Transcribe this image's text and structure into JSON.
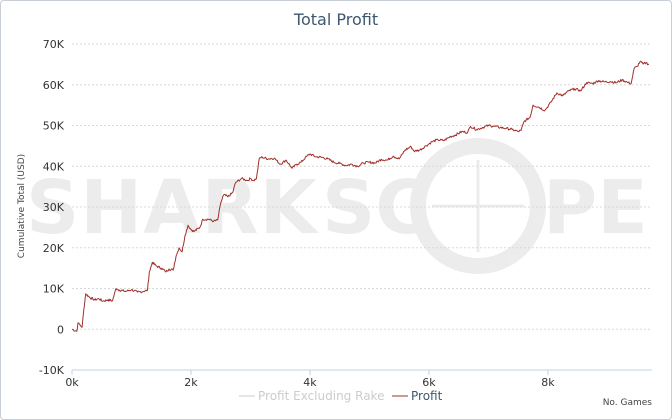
{
  "chart_data": {
    "type": "line",
    "title": "Total Profit",
    "xlabel": "No. Games",
    "ylabel": "Cumulative Total (USD)",
    "xlim": [
      0,
      9750
    ],
    "ylim": [
      -10000,
      70000
    ],
    "x_ticks": [
      {
        "value": 0,
        "label": "0k"
      },
      {
        "value": 2000,
        "label": "2k"
      },
      {
        "value": 4000,
        "label": "4k"
      },
      {
        "value": 6000,
        "label": "6k"
      },
      {
        "value": 8000,
        "label": "8k"
      }
    ],
    "y_ticks": [
      {
        "value": -10000,
        "label": "-10K"
      },
      {
        "value": 0,
        "label": "0"
      },
      {
        "value": 10000,
        "label": "10K"
      },
      {
        "value": 20000,
        "label": "20K"
      },
      {
        "value": 30000,
        "label": "30K"
      },
      {
        "value": 40000,
        "label": "40K"
      },
      {
        "value": 50000,
        "label": "50K"
      },
      {
        "value": 60000,
        "label": "60K"
      },
      {
        "value": 70000,
        "label": "70K"
      }
    ],
    "grid": true,
    "legend_position": "bottom-center",
    "watermark": "SHARKSCOPE",
    "series": [
      {
        "name": "Profit Excluding Rake",
        "color": "#cccccc",
        "visible": false,
        "points": []
      },
      {
        "name": "Profit",
        "color": "#a0302a",
        "visible": true,
        "points": [
          [
            0,
            0
          ],
          [
            80,
            -500
          ],
          [
            100,
            1500
          ],
          [
            140,
            1000
          ],
          [
            170,
            500
          ],
          [
            200,
            5000
          ],
          [
            230,
            8700
          ],
          [
            300,
            7800
          ],
          [
            380,
            7200
          ],
          [
            450,
            7500
          ],
          [
            520,
            6900
          ],
          [
            600,
            7200
          ],
          [
            680,
            7000
          ],
          [
            740,
            10000
          ],
          [
            800,
            9600
          ],
          [
            900,
            9300
          ],
          [
            1000,
            9700
          ],
          [
            1100,
            9100
          ],
          [
            1200,
            9300
          ],
          [
            1270,
            9600
          ],
          [
            1300,
            14000
          ],
          [
            1350,
            16400
          ],
          [
            1420,
            15500
          ],
          [
            1500,
            15000
          ],
          [
            1580,
            14100
          ],
          [
            1630,
            14800
          ],
          [
            1700,
            14500
          ],
          [
            1750,
            18000
          ],
          [
            1800,
            20000
          ],
          [
            1850,
            19000
          ],
          [
            1900,
            23000
          ],
          [
            1950,
            25500
          ],
          [
            2000,
            24500
          ],
          [
            2050,
            24000
          ],
          [
            2150,
            25000
          ],
          [
            2200,
            27000
          ],
          [
            2300,
            27000
          ],
          [
            2380,
            26500
          ],
          [
            2450,
            26800
          ],
          [
            2500,
            31000
          ],
          [
            2550,
            33000
          ],
          [
            2620,
            32500
          ],
          [
            2700,
            33500
          ],
          [
            2750,
            36000
          ],
          [
            2850,
            37000
          ],
          [
            2950,
            36500
          ],
          [
            3000,
            37000
          ],
          [
            3050,
            36500
          ],
          [
            3100,
            37000
          ],
          [
            3150,
            42000
          ],
          [
            3200,
            42200
          ],
          [
            3300,
            41800
          ],
          [
            3400,
            42000
          ],
          [
            3500,
            40500
          ],
          [
            3600,
            41500
          ],
          [
            3700,
            39500
          ],
          [
            3780,
            40500
          ],
          [
            3850,
            41000
          ],
          [
            3950,
            42500
          ],
          [
            4000,
            43000
          ],
          [
            4100,
            42300
          ],
          [
            4200,
            42200
          ],
          [
            4300,
            41800
          ],
          [
            4400,
            41000
          ],
          [
            4500,
            40700
          ],
          [
            4600,
            40200
          ],
          [
            4700,
            40500
          ],
          [
            4800,
            40000
          ],
          [
            4900,
            40800
          ],
          [
            5000,
            41000
          ],
          [
            5100,
            40800
          ],
          [
            5200,
            41700
          ],
          [
            5300,
            41500
          ],
          [
            5400,
            42500
          ],
          [
            5500,
            41800
          ],
          [
            5600,
            44000
          ],
          [
            5700,
            44800
          ],
          [
            5750,
            43700
          ],
          [
            5850,
            44000
          ],
          [
            5950,
            45000
          ],
          [
            6050,
            46000
          ],
          [
            6150,
            46500
          ],
          [
            6250,
            46300
          ],
          [
            6350,
            47200
          ],
          [
            6450,
            47700
          ],
          [
            6550,
            48500
          ],
          [
            6650,
            48300
          ],
          [
            6700,
            49800
          ],
          [
            6800,
            49000
          ],
          [
            6900,
            49500
          ],
          [
            7000,
            50000
          ],
          [
            7100,
            49800
          ],
          [
            7200,
            49500
          ],
          [
            7300,
            49300
          ],
          [
            7400,
            49000
          ],
          [
            7500,
            48500
          ],
          [
            7550,
            48800
          ],
          [
            7600,
            51000
          ],
          [
            7700,
            52000
          ],
          [
            7750,
            55000
          ],
          [
            7850,
            54500
          ],
          [
            7950,
            53700
          ],
          [
            8050,
            55700
          ],
          [
            8150,
            58000
          ],
          [
            8250,
            57300
          ],
          [
            8350,
            58500
          ],
          [
            8450,
            59000
          ],
          [
            8550,
            58500
          ],
          [
            8650,
            60500
          ],
          [
            8750,
            60300
          ],
          [
            8850,
            61000
          ],
          [
            8950,
            60700
          ],
          [
            9050,
            60800
          ],
          [
            9150,
            60500
          ],
          [
            9250,
            61200
          ],
          [
            9350,
            60500
          ],
          [
            9400,
            60300
          ],
          [
            9450,
            64000
          ],
          [
            9500,
            64500
          ],
          [
            9550,
            65700
          ],
          [
            9600,
            65100
          ],
          [
            9650,
            65400
          ],
          [
            9700,
            65000
          ]
        ]
      }
    ]
  }
}
